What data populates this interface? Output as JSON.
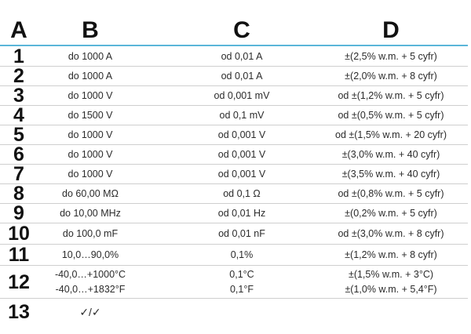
{
  "headers": {
    "a": "A",
    "b": "B",
    "c": "C",
    "d": "D"
  },
  "rows": [
    {
      "num": "1",
      "b": "do 1000 A",
      "c": "od 0,01 A",
      "d": "±(2,5% w.m. + 5 cyfr)"
    },
    {
      "num": "2",
      "b": "do 1000 A",
      "c": "od 0,01 A",
      "d": "±(2,0% w.m. + 8 cyfr)"
    },
    {
      "num": "3",
      "b": "do 1000 V",
      "c": "od 0,001 mV",
      "d": "od ±(1,2% w.m. + 5 cyfr)"
    },
    {
      "num": "4",
      "b": "do 1500 V",
      "c": "od 0,1 mV",
      "d": "od ±(0,5% w.m. + 5 cyfr)"
    },
    {
      "num": "5",
      "b": "do 1000 V",
      "c": "od 0,001 V",
      "d": "od ±(1,5% w.m. + 20 cyfr)"
    },
    {
      "num": "6",
      "b": "do 1000 V",
      "c": "od 0,001 V",
      "d": "±(3,0% w.m. + 40 cyfr)"
    },
    {
      "num": "7",
      "b": "do 1000 V",
      "c": "od 0,001 V",
      "d": "±(3,5% w.m. + 40 cyfr)"
    },
    {
      "num": "8",
      "b": "do 60,00 MΩ",
      "c": "od 0,1 Ω",
      "d": "od ±(0,8% w.m. + 5 cyfr)"
    },
    {
      "num": "9",
      "b": "do 10,00 MHz",
      "c": "od 0,01 Hz",
      "d": "±(0,2% w.m. + 5 cyfr)"
    },
    {
      "num": "10",
      "b": "do 100,0 mF",
      "c": "od 0,01 nF",
      "d": "od ±(3,0% w.m. + 8 cyfr)"
    },
    {
      "num": "11",
      "b": "10,0…90,0%",
      "c": "0,1%",
      "d": "±(1,2% w.m. + 8 cyfr)"
    }
  ],
  "row12": {
    "num": "12",
    "b1": "-40,0…+1000°C",
    "c1": "0,1°C",
    "d1": "±(1,5% w.m. + 3°C)",
    "b2": "-40,0…+1832°F",
    "c2": "0,1°F",
    "d2": "±(1,0% w.m. + 5,4°F)"
  },
  "row13": {
    "num": "13",
    "b": "✓/✓"
  }
}
